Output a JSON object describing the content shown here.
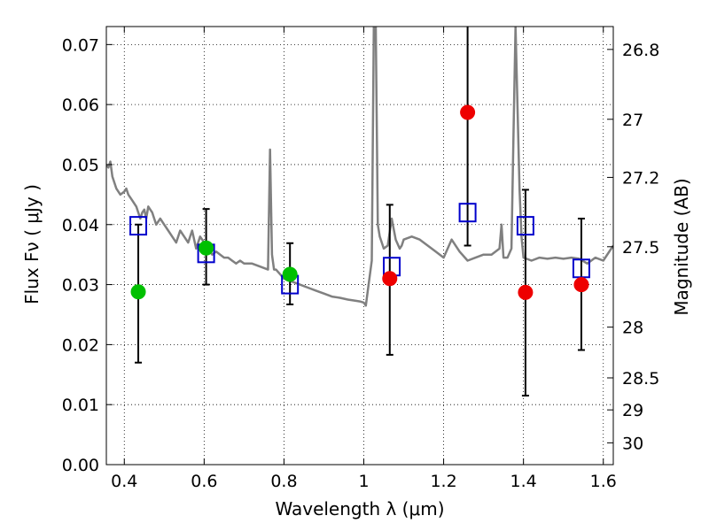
{
  "chart_data": {
    "type": "scatter",
    "xlabel": "Wavelength  λ (μm)",
    "ylabel": "Flux  Fν  ( μJy )",
    "y2label": "Magnitude (AB)",
    "xlim": [
      0.355,
      1.625
    ],
    "ylim": [
      0.0,
      0.073
    ],
    "grid": true,
    "x_ticks": [
      0.4,
      0.6,
      0.8,
      1.0,
      1.2,
      1.4,
      1.6
    ],
    "x_tick_labels": [
      "0.4",
      "0.6",
      "0.8",
      "1",
      "1.2",
      "1.4",
      "1.6"
    ],
    "y_ticks": [
      0.0,
      0.01,
      0.02,
      0.03,
      0.04,
      0.05,
      0.06,
      0.07
    ],
    "y_tick_labels": [
      "0.00",
      "0.01",
      "0.02",
      "0.03",
      "0.04",
      "0.05",
      "0.06",
      "0.07"
    ],
    "y2_ticks": [
      26.8,
      27,
      27.2,
      27.5,
      28,
      28.5,
      29,
      30
    ],
    "y2_tick_labels": [
      "26.8",
      "27",
      "27.2",
      "27.5",
      "28",
      "28.5",
      "29",
      "30"
    ],
    "colors": {
      "spectrum": "#808080",
      "model_boxes": "#0000cc",
      "detections": "#00c000",
      "nondetections": "#ee0000",
      "errorbars": "#000000"
    },
    "spectrum": {
      "x": [
        0.355,
        0.36,
        0.365,
        0.37,
        0.38,
        0.39,
        0.4,
        0.405,
        0.41,
        0.42,
        0.43,
        0.44,
        0.445,
        0.45,
        0.455,
        0.46,
        0.47,
        0.475,
        0.48,
        0.49,
        0.5,
        0.51,
        0.52,
        0.53,
        0.54,
        0.55,
        0.56,
        0.57,
        0.58,
        0.59,
        0.6,
        0.61,
        0.62,
        0.63,
        0.64,
        0.65,
        0.66,
        0.67,
        0.68,
        0.69,
        0.7,
        0.72,
        0.74,
        0.76,
        0.765,
        0.77,
        0.775,
        0.78,
        0.8,
        0.82,
        0.84,
        0.86,
        0.88,
        0.9,
        0.92,
        0.94,
        0.96,
        0.98,
        0.99,
        1.0,
        1.005,
        1.01,
        1.02,
        1.025,
        1.03,
        1.035,
        1.04,
        1.045,
        1.05,
        1.06,
        1.07,
        1.08,
        1.09,
        1.095,
        1.1,
        1.12,
        1.14,
        1.16,
        1.18,
        1.2,
        1.22,
        1.24,
        1.26,
        1.28,
        1.3,
        1.32,
        1.34,
        1.345,
        1.35,
        1.36,
        1.37,
        1.375,
        1.38,
        1.39,
        1.395,
        1.4,
        1.42,
        1.44,
        1.46,
        1.48,
        1.5,
        1.52,
        1.54,
        1.56,
        1.58,
        1.6,
        1.625
      ],
      "y": [
        0.05,
        0.0495,
        0.0505,
        0.048,
        0.046,
        0.045,
        0.0455,
        0.046,
        0.045,
        0.044,
        0.043,
        0.041,
        0.042,
        0.0425,
        0.041,
        0.043,
        0.042,
        0.041,
        0.04,
        0.041,
        0.04,
        0.039,
        0.038,
        0.037,
        0.039,
        0.038,
        0.037,
        0.039,
        0.036,
        0.038,
        0.037,
        0.036,
        0.035,
        0.0355,
        0.035,
        0.0345,
        0.0345,
        0.034,
        0.0335,
        0.034,
        0.0335,
        0.0335,
        0.033,
        0.0325,
        0.0525,
        0.035,
        0.0325,
        0.0325,
        0.031,
        0.0305,
        0.03,
        0.0295,
        0.029,
        0.0285,
        0.028,
        0.0278,
        0.0275,
        0.0273,
        0.0272,
        0.027,
        0.0265,
        0.029,
        0.034,
        0.073,
        0.073,
        0.04,
        0.038,
        0.037,
        0.036,
        0.0365,
        0.041,
        0.0375,
        0.036,
        0.0365,
        0.0375,
        0.038,
        0.0375,
        0.0365,
        0.0355,
        0.0345,
        0.0375,
        0.0355,
        0.034,
        0.0345,
        0.035,
        0.035,
        0.036,
        0.04,
        0.0345,
        0.0345,
        0.036,
        0.055,
        0.073,
        0.046,
        0.038,
        0.0345,
        0.034,
        0.0345,
        0.0343,
        0.0345,
        0.0343,
        0.0345,
        0.0343,
        0.0335,
        0.0345,
        0.034,
        0.0365
      ]
    },
    "model_boxes": [
      {
        "x": 0.435,
        "y": 0.0398
      },
      {
        "x": 0.605,
        "y": 0.0352
      },
      {
        "x": 0.815,
        "y": 0.03
      },
      {
        "x": 1.07,
        "y": 0.033
      },
      {
        "x": 1.26,
        "y": 0.042
      },
      {
        "x": 1.405,
        "y": 0.0398
      },
      {
        "x": 1.545,
        "y": 0.0327
      }
    ],
    "detections": [
      {
        "x": 0.435,
        "y": 0.0288,
        "yerr_low": 0.017,
        "yerr_high": 0.04
      },
      {
        "x": 0.605,
        "y": 0.0361,
        "yerr_low": 0.03,
        "yerr_high": 0.0426
      },
      {
        "x": 0.815,
        "y": 0.0317,
        "yerr_low": 0.0267,
        "yerr_high": 0.0369
      }
    ],
    "nondetections": [
      {
        "x": 1.065,
        "y": 0.031,
        "yerr_low": 0.0183,
        "yerr_high": 0.0433
      },
      {
        "x": 1.26,
        "y": 0.0587,
        "yerr_low": 0.0365,
        "yerr_high": 0.073
      },
      {
        "x": 1.405,
        "y": 0.0287,
        "yerr_low": 0.0115,
        "yerr_high": 0.0458
      },
      {
        "x": 1.545,
        "y": 0.03,
        "yerr_low": 0.0191,
        "yerr_high": 0.041
      }
    ]
  }
}
